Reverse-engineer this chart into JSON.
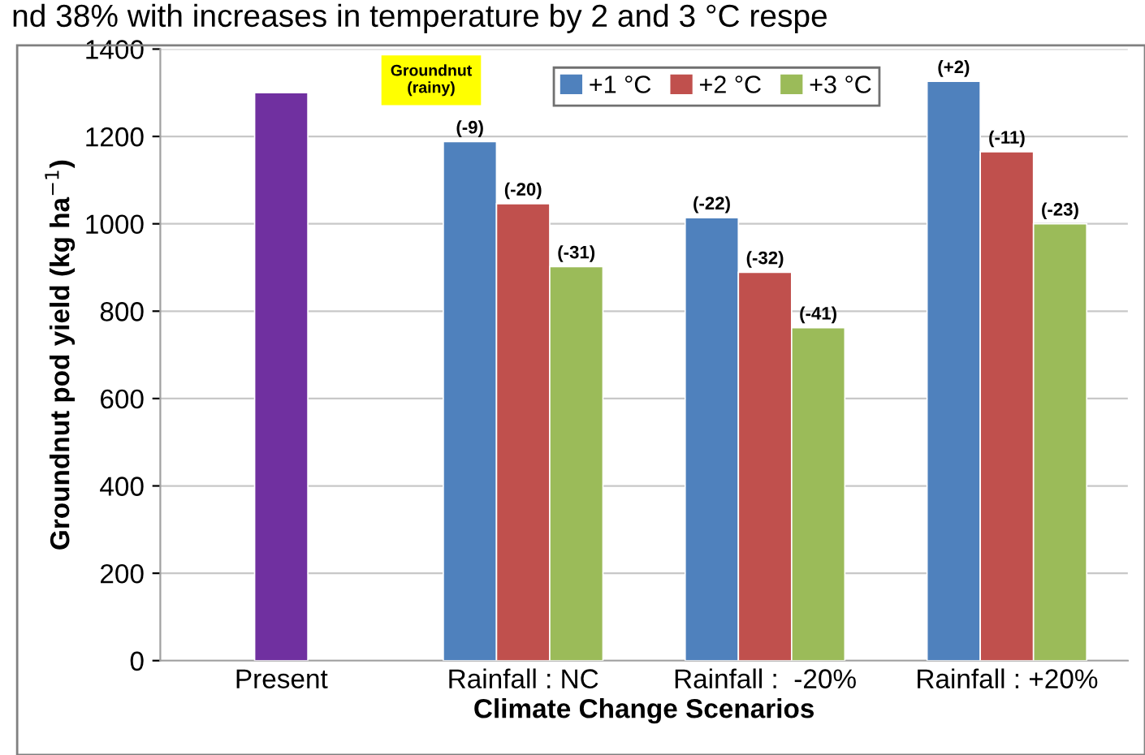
{
  "chart_data": {
    "type": "bar",
    "categories": [
      "Present",
      "Rainfall : NC",
      "Rainfall :  -20%",
      "Rainfall : +20%"
    ],
    "series": [
      {
        "color": "#7030a0",
        "values": [
          1300,
          null,
          null,
          null
        ]
      },
      {
        "name": "+1 °C",
        "color": "#4f81bd",
        "values": [
          null,
          1188,
          1014,
          1326
        ]
      },
      {
        "name": "+2 °C",
        "color": "#c0504d",
        "values": [
          null,
          1046,
          889,
          1165
        ]
      },
      {
        "name": "+3 °C",
        "color": "#9bbb59",
        "values": [
          null,
          902,
          762,
          1000
        ]
      }
    ],
    "xlabel": "Climate Change Scenarios",
    "ylabel": "Groundnut pod yield (kg ha$^{−1}$)",
    "ylim": [
      0,
      1400
    ],
    "yticks": [
      0,
      200,
      400,
      600,
      800,
      1000,
      1200,
      1400
    ],
    "grid": "y",
    "legend": "top",
    "annotations": [
      "nd 38% with increases in temperature by 2 and 3 °C respe",
      "Groundnut\n(rainy)",
      {
        "text": "(-9)",
        "y": 1188
      },
      {
        "text": "(-20)",
        "y": 1046
      },
      {
        "text": "(-31)",
        "y": 902
      },
      {
        "text": "(-22)",
        "y": 1014
      },
      {
        "text": "(-32)",
        "y": 889
      },
      {
        "text": "(-41)",
        "y": 762
      },
      {
        "text": "(+2)",
        "y": 1326
      },
      {
        "text": "(-11)",
        "y": 1165
      },
      {
        "text": "(-23)",
        "y": 1000
      }
    ]
  }
}
